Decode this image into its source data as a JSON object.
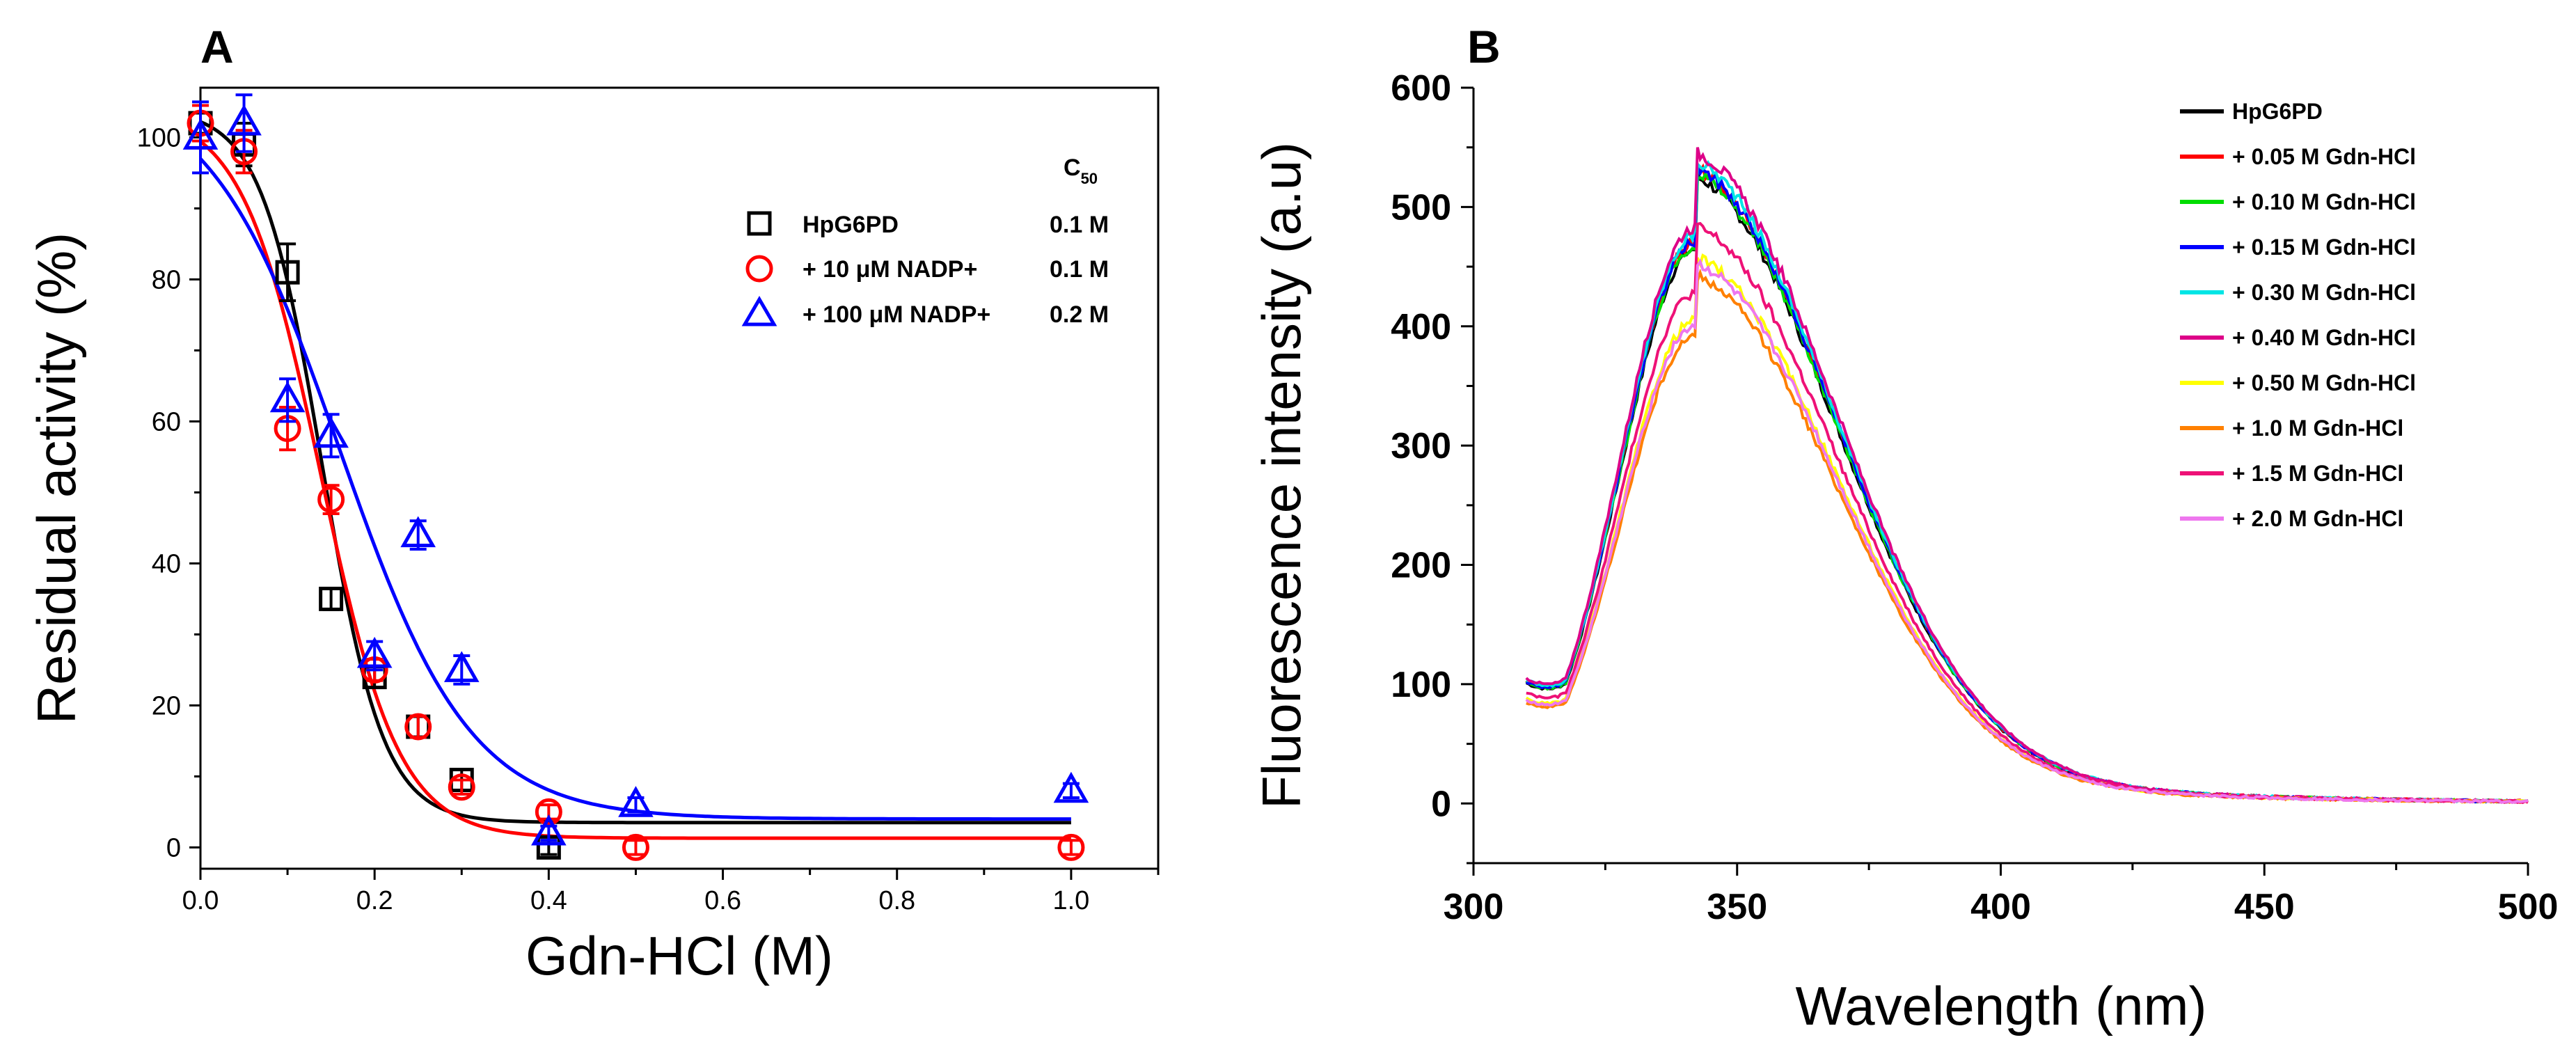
{
  "chart_data": [
    {
      "id": "A",
      "type": "scatter",
      "panel_label": "A",
      "xlabel": "Gdn-HCl (M)",
      "ylabel": "Residual activity (%)",
      "xlim": [
        0,
        1.1
      ],
      "ylim": [
        -3,
        107
      ],
      "x_ticks": [
        "0.0",
        "0.2",
        "0.4",
        "0.6",
        "0.8",
        "1.0"
      ],
      "x_tick_values": [
        0,
        0.2,
        0.4,
        0.6,
        0.8,
        1.0
      ],
      "y_ticks": [
        "0",
        "20",
        "40",
        "60",
        "80",
        "100"
      ],
      "y_tick_values": [
        0,
        20,
        40,
        60,
        80,
        100
      ],
      "legend_header": "C",
      "legend_header_sub": "50",
      "legend_position": "top-right",
      "series": [
        {
          "name": "HpG6PD",
          "c50": "0.1 M",
          "marker": "square",
          "color": "#000000",
          "x": [
            0.0,
            0.05,
            0.1,
            0.15,
            0.2,
            0.25,
            0.3,
            0.4
          ],
          "y": [
            102,
            99,
            81,
            35,
            24,
            17,
            9.5,
            0
          ],
          "err": [
            2.5,
            3,
            4,
            1.5,
            1.5,
            1.5,
            1.5,
            1
          ],
          "fit": {
            "A1": 104,
            "A2": 3.5,
            "x0": 0.14,
            "dx": 0.035
          }
        },
        {
          "name": "+ 10 μM NADP+",
          "c50": "0.1 M",
          "marker": "circle",
          "color": "#ff0000",
          "x": [
            0.0,
            0.05,
            0.1,
            0.15,
            0.2,
            0.25,
            0.3,
            0.4,
            0.5,
            1.0
          ],
          "y": [
            102,
            98,
            59,
            49,
            25,
            17,
            8.5,
            5,
            0,
            0
          ],
          "err": [
            2.5,
            3,
            3,
            2,
            1.5,
            1.5,
            1,
            1,
            1,
            1
          ],
          "fit": {
            "A1": 104,
            "A2": 1.3,
            "x0": 0.138,
            "dx": 0.045
          }
        },
        {
          "name": "+ 100 μM NADP+",
          "c50": "0.2 M",
          "marker": "triangle",
          "color": "#0000ff",
          "x": [
            0.0,
            0.05,
            0.1,
            0.15,
            0.2,
            0.25,
            0.3,
            0.4,
            0.5,
            1.0
          ],
          "y": [
            100,
            102,
            63,
            58,
            27,
            44,
            25,
            2,
            6,
            8
          ],
          "err": [
            5,
            4,
            3,
            3,
            2,
            2,
            2,
            1,
            1,
            1
          ],
          "fit": {
            "A1": 108,
            "A2": 4,
            "x0": 0.16,
            "dx": 0.075
          }
        }
      ]
    },
    {
      "id": "B",
      "type": "line",
      "panel_label": "B",
      "xlabel": "Wavelength (nm)",
      "ylabel": "Fluorescence intensity (a.u)",
      "xlim": [
        300,
        500
      ],
      "ylim": [
        -50,
        600
      ],
      "x_ticks": [
        "300",
        "350",
        "400",
        "450",
        "500"
      ],
      "x_tick_values": [
        300,
        350,
        400,
        450,
        500
      ],
      "y_ticks": [
        "0",
        "100",
        "200",
        "300",
        "400",
        "500",
        "600"
      ],
      "y_tick_values": [
        0,
        100,
        200,
        300,
        400,
        500,
        600
      ],
      "legend_position": "top-right",
      "series": [
        {
          "name": "HpG6PD",
          "color": "#000000",
          "peak": 505
        },
        {
          "name": "+ 0.05 M Gdn-HCl",
          "color": "#ff0000",
          "peak": 512
        },
        {
          "name": "+ 0.10 M Gdn-HCl",
          "color": "#00dd00",
          "peak": 508
        },
        {
          "name": "+ 0.15 M Gdn-HCl",
          "color": "#0000ff",
          "peak": 512
        },
        {
          "name": "+ 0.30 M Gdn-HCl",
          "color": "#00e5e5",
          "peak": 518
        },
        {
          "name": "+ 0.40 M Gdn-HCl",
          "color": "#dd0088",
          "peak": 525
        },
        {
          "name": "+ 0.50 M Gdn-HCl",
          "color": "#ffff00",
          "peak": 440
        },
        {
          "name": "+ 1.0 M Gdn-HCl",
          "color": "#ff8000",
          "peak": 425
        },
        {
          "name": "+ 1.5 M Gdn-HCl",
          "color": "#ee1177",
          "peak": 465
        },
        {
          "name": "+ 2.0 M Gdn-HCl",
          "color": "#ee77ee",
          "peak": 435
        }
      ],
      "spectrum_shape": {
        "x_start": 310,
        "x_end": 500,
        "peak_x": 342,
        "start_fraction": 0.2,
        "width_left": 14,
        "width_right": 27
      }
    }
  ]
}
